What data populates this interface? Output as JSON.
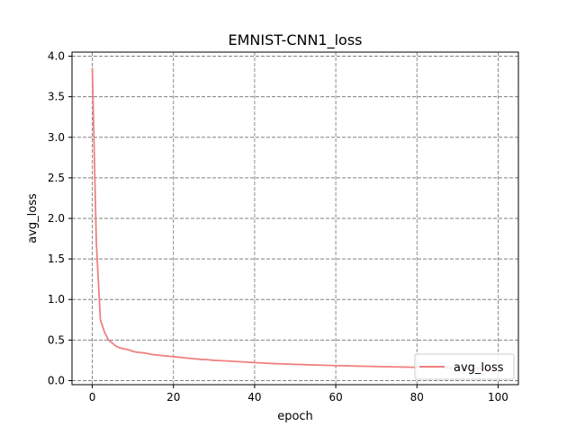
{
  "chart_data": {
    "type": "line",
    "title": "EMNIST-CNN1_loss",
    "xlabel": "epoch",
    "ylabel": "avg_loss",
    "xlim": [
      -5,
      105
    ],
    "ylim": [
      -0.05,
      4.05
    ],
    "xticks": [
      0,
      20,
      40,
      60,
      80,
      100
    ],
    "yticks": [
      0.0,
      0.5,
      1.0,
      1.5,
      2.0,
      2.5,
      3.0,
      3.5,
      4.0
    ],
    "xtick_labels": [
      "0",
      "20",
      "40",
      "60",
      "80",
      "100"
    ],
    "ytick_labels": [
      "0.0",
      "0.5",
      "1.0",
      "1.5",
      "2.0",
      "2.5",
      "3.0",
      "3.5",
      "4.0"
    ],
    "grid": true,
    "legend_position": "lower-right",
    "series": [
      {
        "name": "avg_loss",
        "color": "#f08080",
        "x": [
          0,
          1,
          2,
          3,
          4,
          5,
          6,
          7,
          8,
          9,
          10,
          11,
          12,
          13,
          14,
          15,
          16,
          17,
          18,
          19,
          20,
          21,
          22,
          23,
          24,
          25,
          26,
          27,
          28,
          29,
          30,
          31,
          32,
          33,
          34,
          35,
          36,
          37,
          38,
          39,
          40,
          41,
          42,
          43,
          44,
          45,
          46,
          47,
          48,
          49,
          50,
          51,
          52,
          53,
          54,
          55,
          56,
          57,
          58,
          59,
          60,
          61,
          62,
          63,
          64,
          65,
          66,
          67,
          68,
          69,
          70,
          71,
          72,
          73,
          74,
          75,
          76,
          77,
          78,
          79,
          80,
          81,
          82,
          83,
          84,
          85,
          86,
          87,
          88,
          89,
          90,
          91,
          92,
          93,
          94,
          95,
          96,
          97,
          98,
          99
        ],
        "values": [
          3.85,
          1.7,
          0.75,
          0.6,
          0.5,
          0.46,
          0.42,
          0.4,
          0.39,
          0.38,
          0.36,
          0.35,
          0.345,
          0.34,
          0.33,
          0.32,
          0.315,
          0.31,
          0.305,
          0.3,
          0.295,
          0.29,
          0.285,
          0.28,
          0.275,
          0.27,
          0.265,
          0.26,
          0.26,
          0.255,
          0.25,
          0.248,
          0.245,
          0.242,
          0.24,
          0.237,
          0.234,
          0.231,
          0.228,
          0.225,
          0.222,
          0.22,
          0.217,
          0.214,
          0.212,
          0.21,
          0.208,
          0.206,
          0.204,
          0.202,
          0.2,
          0.199,
          0.197,
          0.196,
          0.194,
          0.193,
          0.191,
          0.19,
          0.188,
          0.187,
          0.185,
          0.184,
          0.183,
          0.182,
          0.18,
          0.179,
          0.178,
          0.177,
          0.176,
          0.175,
          0.174,
          0.173,
          0.172,
          0.171,
          0.17,
          0.169,
          0.168,
          0.167,
          0.166,
          0.165,
          0.164,
          0.163,
          0.162,
          0.161,
          0.16,
          0.159,
          0.158,
          0.157,
          0.157,
          0.156,
          0.155,
          0.154,
          0.153,
          0.153,
          0.152,
          0.151,
          0.15,
          0.15,
          0.149,
          0.148
        ]
      }
    ]
  }
}
